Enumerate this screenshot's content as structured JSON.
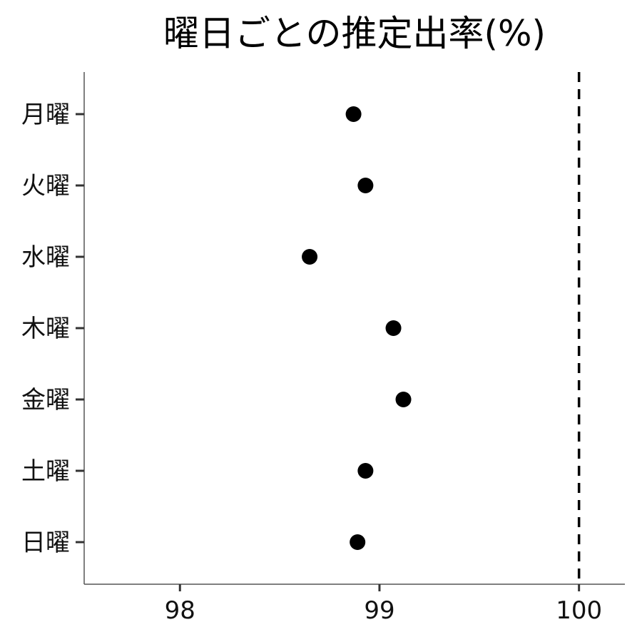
{
  "chart_data": {
    "type": "scatter",
    "title": "曜日ごとの推定出率(%)",
    "xlabel": "",
    "ylabel": "",
    "categories": [
      "月曜",
      "火曜",
      "水曜",
      "木曜",
      "金曜",
      "土曜",
      "日曜"
    ],
    "values": [
      98.87,
      98.93,
      98.65,
      99.07,
      99.12,
      98.93,
      98.89
    ],
    "xlim": [
      97.52,
      100.23
    ],
    "xticks": [
      "98",
      "99",
      "100"
    ],
    "reference_line": {
      "x": 100,
      "style": "dashed"
    },
    "grid": false,
    "point_color": "#000000"
  }
}
